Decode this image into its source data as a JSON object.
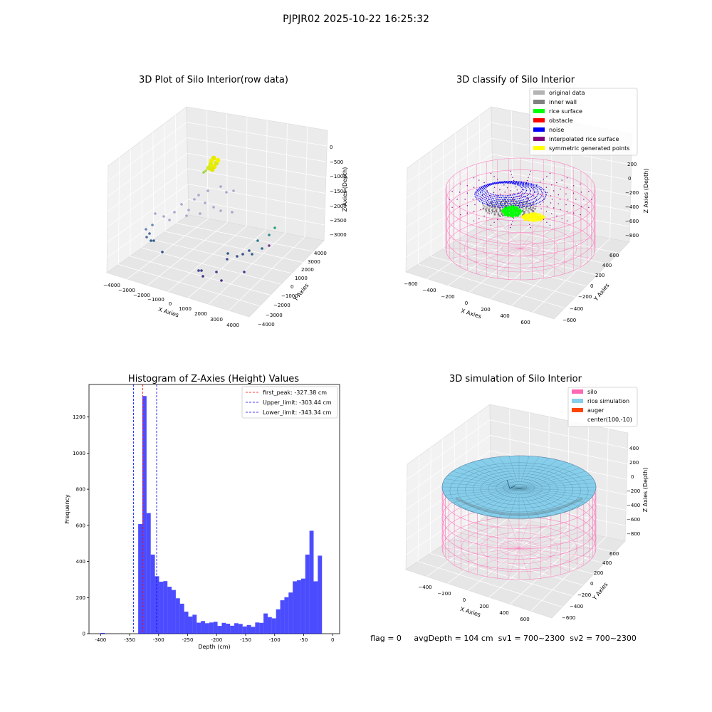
{
  "suptitle": "PJPJR02 2025-10-22 16:25:32",
  "colors": {
    "original_data": "#b3b3b3",
    "inner_wall": "#808080",
    "rice_surface": "#00ff00",
    "obstacle": "#ff0000",
    "noise": "#0000ff",
    "interpolated_rice_surface": "#800080",
    "symmetric_generated_points": "#ffff00",
    "silo": "#ff69b4",
    "rice_simulation": "#87ceeb",
    "auger": "#ff4500",
    "histogram_bar": "#0000ff",
    "first_peak_line": "#ff0000",
    "limit_line": "#0000ff"
  },
  "raw_plot": {
    "title": "3D Plot of Silo Interior(row data)",
    "xlabel": "X Axies",
    "ylabel": "Y Axies",
    "zlabel": "Z Axies (Depth)",
    "x_ticks": [
      "−4000",
      "−3000",
      "−2000",
      "−1000",
      "0",
      "1000",
      "2000",
      "3000",
      "4000"
    ],
    "y_ticks": [
      "−4000",
      "−3000",
      "−2000",
      "−1000",
      "0",
      "1000",
      "2000",
      "3000",
      "4000"
    ],
    "z_ticks": [
      "0",
      "−500",
      "−1000",
      "−1500",
      "−2000",
      "−2500",
      "−3000"
    ]
  },
  "classify_plot": {
    "title": "3D classify of Silo Interior",
    "xlabel": "X Axies",
    "ylabel": "Y Axies",
    "zlabel": "Z Axies (Depth)",
    "x_ticks": [
      "−600",
      "−400",
      "−200",
      "0",
      "200",
      "400",
      "600"
    ],
    "y_ticks": [
      "−600",
      "−400",
      "−200",
      "0",
      "200",
      "400",
      "600"
    ],
    "z_ticks": [
      "200",
      "0",
      "−200",
      "−400",
      "−600",
      "−800"
    ],
    "legend": [
      {
        "label": "original data",
        "color_key": "original_data"
      },
      {
        "label": "inner wall",
        "color_key": "inner_wall"
      },
      {
        "label": "rice surface",
        "color_key": "rice_surface"
      },
      {
        "label": "obstacle",
        "color_key": "obstacle"
      },
      {
        "label": "noise",
        "color_key": "noise"
      },
      {
        "label": "interpolated rice surface",
        "color_key": "interpolated_rice_surface"
      },
      {
        "label": "symmetric generated points",
        "color_key": "symmetric_generated_points"
      }
    ]
  },
  "simulation_plot": {
    "title": "3D simulation of Silo Interior",
    "xlabel": "X Axies",
    "ylabel": "Y Axies",
    "zlabel": "Z Axies (Depth)",
    "x_ticks": [
      "−400",
      "−200",
      "0",
      "200",
      "400",
      "600"
    ],
    "y_ticks": [
      "−600",
      "−400",
      "−200",
      "0",
      "200",
      "400",
      "600"
    ],
    "z_ticks": [
      "400",
      "200",
      "0",
      "−200",
      "−400",
      "−600",
      "−800"
    ],
    "legend": [
      {
        "label": "silo",
        "color_key": "silo"
      },
      {
        "label": "rice simulation",
        "color_key": "rice_simulation"
      },
      {
        "label": "auger",
        "color_key": "auger"
      },
      {
        "label": "center(100,-10)",
        "color_key": ""
      }
    ],
    "status_line": "flag = 0     avgDepth = 104 cm  sv1 = 700~2300  sv2 = 700~2300"
  },
  "chart_data": {
    "type": "bar",
    "title": "Histogram of Z-Axies (Height) Values",
    "xlabel": "Depth (cm)",
    "ylabel": "Frequency",
    "xlim": [
      -420,
      12
    ],
    "ylim": [
      0,
      1380
    ],
    "x_ticks": [
      -400,
      -350,
      -300,
      -250,
      -200,
      -150,
      -100,
      -50,
      0
    ],
    "y_ticks": [
      0,
      200,
      400,
      600,
      800,
      1000,
      1200
    ],
    "bin_width": 7.2,
    "bins": [
      {
        "x": -400,
        "count": 4
      },
      {
        "x": -335.2,
        "count": 607
      },
      {
        "x": -328,
        "count": 1316
      },
      {
        "x": -320.8,
        "count": 668
      },
      {
        "x": -313.6,
        "count": 438
      },
      {
        "x": -306.4,
        "count": 318
      },
      {
        "x": -299.2,
        "count": 288
      },
      {
        "x": -292,
        "count": 291
      },
      {
        "x": -284.8,
        "count": 260
      },
      {
        "x": -277.6,
        "count": 242
      },
      {
        "x": -270.4,
        "count": 196
      },
      {
        "x": -263.2,
        "count": 166
      },
      {
        "x": -256,
        "count": 122
      },
      {
        "x": -248.8,
        "count": 95
      },
      {
        "x": -241.6,
        "count": 105
      },
      {
        "x": -234.4,
        "count": 61
      },
      {
        "x": -227.2,
        "count": 70
      },
      {
        "x": -220,
        "count": 58
      },
      {
        "x": -212.8,
        "count": 62
      },
      {
        "x": -205.6,
        "count": 66
      },
      {
        "x": -198.4,
        "count": 43
      },
      {
        "x": -191.2,
        "count": 60
      },
      {
        "x": -184,
        "count": 55
      },
      {
        "x": -176.8,
        "count": 44
      },
      {
        "x": -169.6,
        "count": 58
      },
      {
        "x": -162.4,
        "count": 54
      },
      {
        "x": -155.2,
        "count": 40
      },
      {
        "x": -148,
        "count": 48
      },
      {
        "x": -140.8,
        "count": 38
      },
      {
        "x": -133.6,
        "count": 62
      },
      {
        "x": -126.4,
        "count": 60
      },
      {
        "x": -119.2,
        "count": 112
      },
      {
        "x": -112,
        "count": 92
      },
      {
        "x": -104.8,
        "count": 85
      },
      {
        "x": -97.6,
        "count": 135
      },
      {
        "x": -90.4,
        "count": 185
      },
      {
        "x": -83.2,
        "count": 202
      },
      {
        "x": -76,
        "count": 228
      },
      {
        "x": -68.8,
        "count": 290
      },
      {
        "x": -61.6,
        "count": 296
      },
      {
        "x": -54.4,
        "count": 305
      },
      {
        "x": -47.2,
        "count": 438
      },
      {
        "x": -40,
        "count": 570
      },
      {
        "x": -32.8,
        "count": 290
      },
      {
        "x": -25.6,
        "count": 432
      }
    ],
    "vlines": [
      {
        "label": "first_peak: -327.38 cm",
        "x": -327.38,
        "color_key": "first_peak_line"
      },
      {
        "label": "Upper_limit: -303.44 cm",
        "x": -303.44,
        "color_key": "limit_line"
      },
      {
        "label": "Lower_limit: -343.34 cm",
        "x": -343.34,
        "color_key": "limit_line"
      }
    ]
  }
}
